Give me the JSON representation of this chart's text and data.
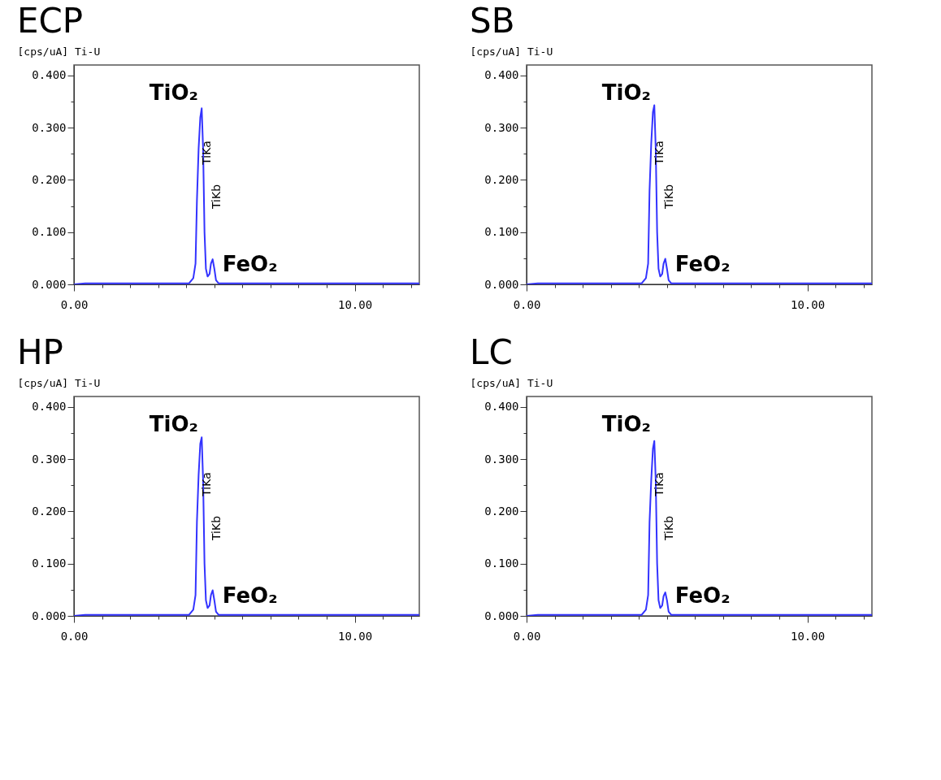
{
  "chart_data": [
    {
      "type": "line",
      "title": "ECP",
      "ylabel": "[cps/uA] Ti-U",
      "x": [
        0,
        0.4,
        4.1,
        4.25,
        4.33,
        4.38,
        4.44,
        4.5,
        4.55,
        4.6,
        4.65,
        4.7,
        4.76,
        4.83,
        4.88,
        4.94,
        5.0,
        5.06,
        5.15,
        12.3
      ],
      "series": [
        {
          "color": "#3333ff",
          "values": [
            0.0,
            0.002,
            0.002,
            0.012,
            0.04,
            0.16,
            0.26,
            0.32,
            0.337,
            0.26,
            0.1,
            0.03,
            0.015,
            0.02,
            0.04,
            0.048,
            0.03,
            0.008,
            0.002,
            0.002
          ]
        }
      ],
      "xlim": [
        0,
        12.3
      ],
      "ylim": [
        0,
        0.42
      ],
      "xticks": [
        {
          "value": 0,
          "label": "0.00"
        },
        {
          "value": 1,
          "label": null
        },
        {
          "value": 2,
          "label": null
        },
        {
          "value": 3,
          "label": null
        },
        {
          "value": 4,
          "label": null
        },
        {
          "value": 5,
          "label": null
        },
        {
          "value": 6,
          "label": null
        },
        {
          "value": 7,
          "label": null
        },
        {
          "value": 8,
          "label": null
        },
        {
          "value": 9,
          "label": null
        },
        {
          "value": 10,
          "label": "10.00"
        },
        {
          "value": 11,
          "label": null
        },
        {
          "value": 12,
          "label": null
        }
      ],
      "yticks": [
        {
          "value": 0,
          "label": "0.000"
        },
        {
          "value": 0.05,
          "label": null
        },
        {
          "value": 0.1,
          "label": "0.100"
        },
        {
          "value": 0.15,
          "label": null
        },
        {
          "value": 0.2,
          "label": "0.200"
        },
        {
          "value": 0.25,
          "label": null
        },
        {
          "value": 0.3,
          "label": "0.300"
        },
        {
          "value": 0.35,
          "label": null
        },
        {
          "value": 0.4,
          "label": "0.400"
        }
      ],
      "annotations": [
        "TiO₂",
        "FeO₂",
        "TiKa",
        "TiKb"
      ]
    },
    {
      "type": "line",
      "title": "SB",
      "ylabel": "[cps/uA] Ti-U",
      "x": [
        0,
        0.4,
        4.1,
        4.25,
        4.33,
        4.38,
        4.44,
        4.5,
        4.55,
        4.6,
        4.65,
        4.7,
        4.76,
        4.83,
        4.88,
        4.94,
        5.0,
        5.06,
        5.15,
        12.3
      ],
      "series": [
        {
          "color": "#3333ff",
          "values": [
            0.0,
            0.002,
            0.002,
            0.012,
            0.04,
            0.18,
            0.27,
            0.33,
            0.343,
            0.26,
            0.1,
            0.03,
            0.015,
            0.02,
            0.04,
            0.049,
            0.03,
            0.008,
            0.002,
            0.002
          ]
        }
      ],
      "xlim": [
        0,
        12.3
      ],
      "ylim": [
        0,
        0.42
      ],
      "xticks": [
        {
          "value": 0,
          "label": "0.00"
        },
        {
          "value": 1,
          "label": null
        },
        {
          "value": 2,
          "label": null
        },
        {
          "value": 3,
          "label": null
        },
        {
          "value": 4,
          "label": null
        },
        {
          "value": 5,
          "label": null
        },
        {
          "value": 6,
          "label": null
        },
        {
          "value": 7,
          "label": null
        },
        {
          "value": 8,
          "label": null
        },
        {
          "value": 9,
          "label": null
        },
        {
          "value": 10,
          "label": "10.00"
        },
        {
          "value": 11,
          "label": null
        },
        {
          "value": 12,
          "label": null
        }
      ],
      "yticks": [
        {
          "value": 0,
          "label": "0.000"
        },
        {
          "value": 0.05,
          "label": null
        },
        {
          "value": 0.1,
          "label": "0.100"
        },
        {
          "value": 0.15,
          "label": null
        },
        {
          "value": 0.2,
          "label": "0.200"
        },
        {
          "value": 0.25,
          "label": null
        },
        {
          "value": 0.3,
          "label": "0.300"
        },
        {
          "value": 0.35,
          "label": null
        },
        {
          "value": 0.4,
          "label": "0.400"
        }
      ],
      "annotations": [
        "TiO₂",
        "FeO₂",
        "TiKa",
        "TiKb"
      ]
    },
    {
      "type": "line",
      "title": "HP",
      "ylabel": "[cps/uA] Ti-U",
      "x": [
        0,
        0.4,
        4.1,
        4.25,
        4.33,
        4.38,
        4.44,
        4.5,
        4.55,
        4.6,
        4.65,
        4.7,
        4.76,
        4.83,
        4.88,
        4.94,
        5.0,
        5.06,
        5.15,
        12.3
      ],
      "series": [
        {
          "color": "#3333ff",
          "values": [
            0.0,
            0.002,
            0.002,
            0.012,
            0.04,
            0.18,
            0.27,
            0.33,
            0.342,
            0.26,
            0.1,
            0.03,
            0.015,
            0.02,
            0.04,
            0.049,
            0.03,
            0.008,
            0.002,
            0.002
          ]
        }
      ],
      "xlim": [
        0,
        12.3
      ],
      "ylim": [
        0,
        0.42
      ],
      "xticks": [
        {
          "value": 0,
          "label": "0.00"
        },
        {
          "value": 1,
          "label": null
        },
        {
          "value": 2,
          "label": null
        },
        {
          "value": 3,
          "label": null
        },
        {
          "value": 4,
          "label": null
        },
        {
          "value": 5,
          "label": null
        },
        {
          "value": 6,
          "label": null
        },
        {
          "value": 7,
          "label": null
        },
        {
          "value": 8,
          "label": null
        },
        {
          "value": 9,
          "label": null
        },
        {
          "value": 10,
          "label": "10.00"
        },
        {
          "value": 11,
          "label": null
        },
        {
          "value": 12,
          "label": null
        }
      ],
      "yticks": [
        {
          "value": 0,
          "label": "0.000"
        },
        {
          "value": 0.05,
          "label": null
        },
        {
          "value": 0.1,
          "label": "0.100"
        },
        {
          "value": 0.15,
          "label": null
        },
        {
          "value": 0.2,
          "label": "0.200"
        },
        {
          "value": 0.25,
          "label": null
        },
        {
          "value": 0.3,
          "label": "0.300"
        },
        {
          "value": 0.35,
          "label": null
        },
        {
          "value": 0.4,
          "label": "0.400"
        }
      ],
      "annotations": [
        "TiO₂",
        "FeO₂",
        "TiKa",
        "TiKb"
      ]
    },
    {
      "type": "line",
      "title": "LC",
      "ylabel": "[cps/uA] Ti-U",
      "x": [
        0,
        0.4,
        4.1,
        4.25,
        4.33,
        4.38,
        4.44,
        4.5,
        4.55,
        4.6,
        4.65,
        4.7,
        4.76,
        4.83,
        4.88,
        4.94,
        5.0,
        5.06,
        5.15,
        12.3
      ],
      "series": [
        {
          "color": "#3333ff",
          "values": [
            0.0,
            0.002,
            0.002,
            0.012,
            0.04,
            0.18,
            0.26,
            0.32,
            0.335,
            0.26,
            0.1,
            0.03,
            0.015,
            0.02,
            0.038,
            0.045,
            0.03,
            0.008,
            0.002,
            0.002
          ]
        }
      ],
      "xlim": [
        0,
        12.3
      ],
      "ylim": [
        0,
        0.42
      ],
      "xticks": [
        {
          "value": 0,
          "label": "0.00"
        },
        {
          "value": 1,
          "label": null
        },
        {
          "value": 2,
          "label": null
        },
        {
          "value": 3,
          "label": null
        },
        {
          "value": 4,
          "label": null
        },
        {
          "value": 5,
          "label": null
        },
        {
          "value": 6,
          "label": null
        },
        {
          "value": 7,
          "label": null
        },
        {
          "value": 8,
          "label": null
        },
        {
          "value": 9,
          "label": null
        },
        {
          "value": 10,
          "label": "10.00"
        },
        {
          "value": 11,
          "label": null
        },
        {
          "value": 12,
          "label": null
        }
      ],
      "yticks": [
        {
          "value": 0,
          "label": "0.000"
        },
        {
          "value": 0.05,
          "label": null
        },
        {
          "value": 0.1,
          "label": "0.100"
        },
        {
          "value": 0.15,
          "label": null
        },
        {
          "value": 0.2,
          "label": "0.200"
        },
        {
          "value": 0.25,
          "label": null
        },
        {
          "value": 0.3,
          "label": "0.300"
        },
        {
          "value": 0.35,
          "label": null
        },
        {
          "value": 0.4,
          "label": "0.400"
        }
      ],
      "annotations": [
        "TiO₂",
        "FeO₂",
        "TiKa",
        "TiKb"
      ]
    }
  ]
}
